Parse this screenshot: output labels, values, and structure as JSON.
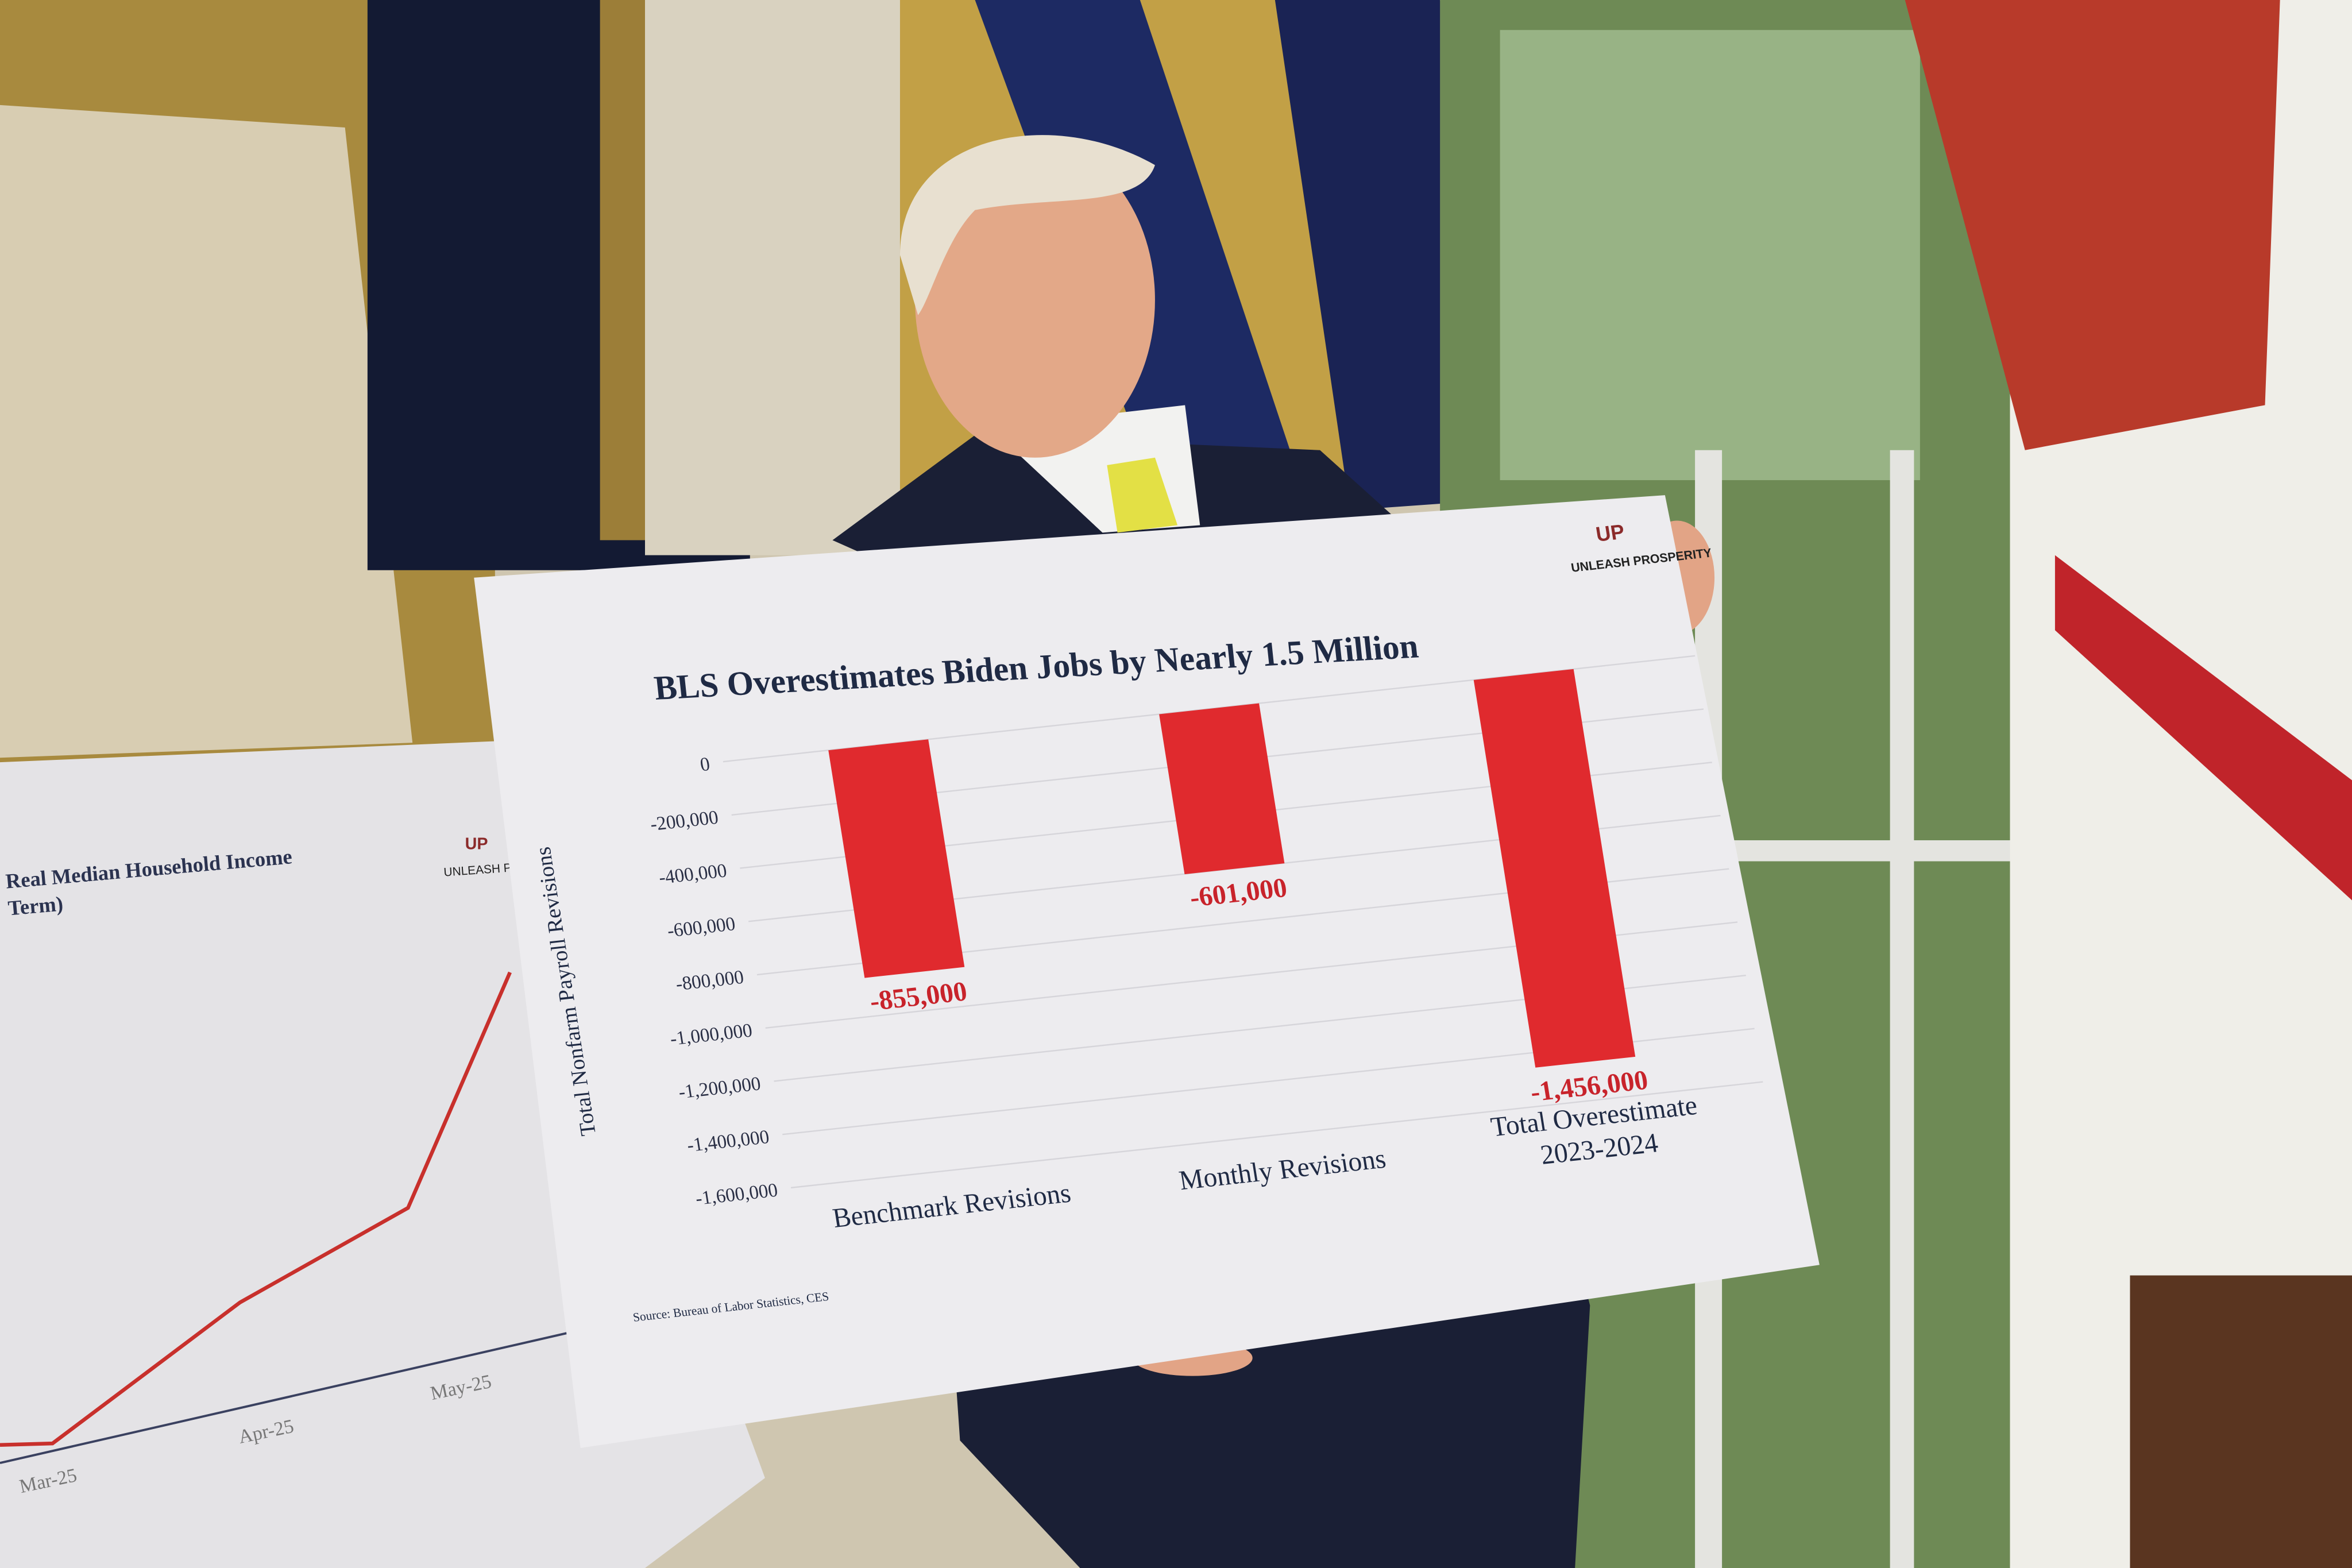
{
  "main_board": {
    "logo_text": "UNLEASH PROSPERITY",
    "logo_mark": "UP",
    "source": "Source: Bureau of Labor Statistics, CES"
  },
  "chart_data": {
    "type": "bar",
    "title": "BLS Overestimates Biden Jobs by Nearly 1.5 Million",
    "xlabel": "",
    "ylabel": "Total Nonfarm Payroll Revisions",
    "ylim": [
      -1600000,
      0
    ],
    "yticks": [
      0,
      -200000,
      -400000,
      -600000,
      -800000,
      -1000000,
      -1200000,
      -1400000,
      -1600000
    ],
    "ytick_labels": [
      "0",
      "-200,000",
      "-400,000",
      "-600,000",
      "-800,000",
      "-1,000,000",
      "-1,200,000",
      "-1,400,000",
      "-1,600,000"
    ],
    "categories": [
      "Benchmark Revisions",
      "Monthly Revisions",
      "Total Overestimate 2023-2024"
    ],
    "category_lines": [
      [
        "Benchmark Revisions"
      ],
      [
        "Monthly Revisions"
      ],
      [
        "Total Overestimate",
        "2023-2024"
      ]
    ],
    "values": [
      -855000,
      -601000,
      -1456000
    ],
    "data_labels": [
      "-855,000",
      "-601,000",
      "-1,456,000"
    ],
    "grid": true,
    "bar_color": "#e02a2e",
    "label_color": "#c8232b",
    "text_color": "#1f2a44"
  },
  "left_board": {
    "title_line1": "Real Median Household Income",
    "title_line2": "Term)",
    "logo_text": "UNLEASH PROS",
    "logo_mark": "UP",
    "x_labels": [
      "Mar-25",
      "Apr-25",
      "May-25"
    ],
    "line_color": "#c8302c"
  }
}
